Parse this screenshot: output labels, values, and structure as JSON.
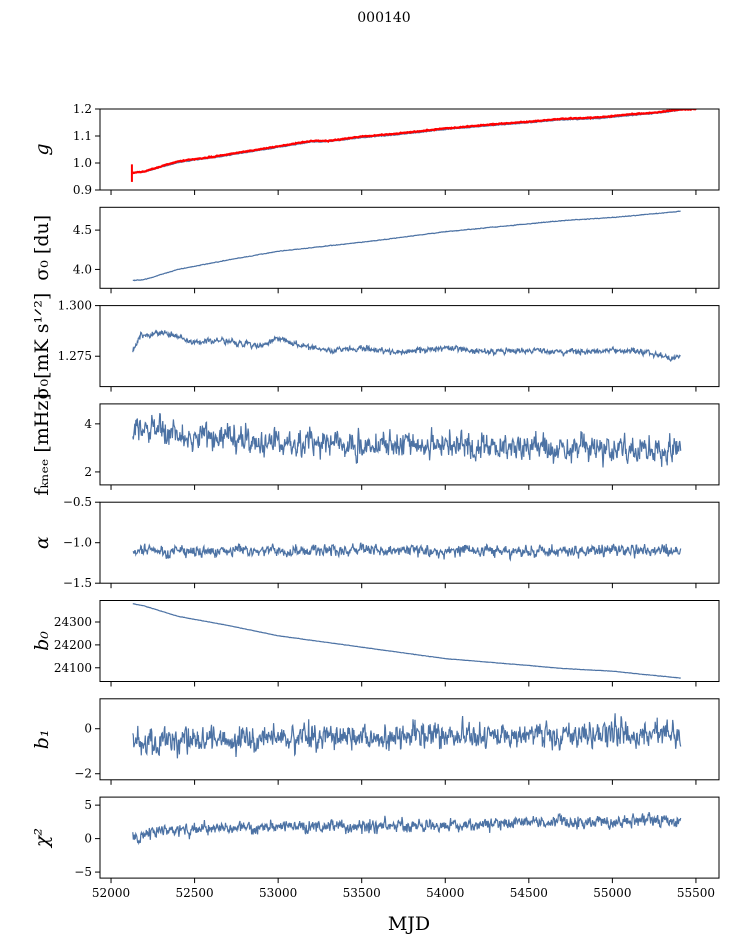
{
  "title": "000140",
  "chart_data": {
    "type": "line",
    "title": "000140",
    "xlabel": "MJD",
    "xlim": [
      51934,
      55638
    ],
    "xticks": [
      52000,
      52500,
      53000,
      53500,
      54000,
      54500,
      55000,
      55500
    ],
    "xtick_labels": [
      "52000",
      "52500",
      "53000",
      "53500",
      "54000",
      "54500",
      "55000",
      "55500"
    ],
    "grid": false,
    "line_color": "#4c72a4",
    "overlay_color": "#ff0000",
    "panels": [
      {
        "ylabel": "g",
        "ylim": [
          0.9,
          1.2
        ],
        "yticks": [
          0.9,
          1.0,
          1.1,
          1.2
        ],
        "ytick_labels": [
          "0.9",
          "1.0",
          "1.1",
          "1.2"
        ],
        "series": [
          {
            "name": "g",
            "color": "#4c72a4",
            "noise": 0.0012,
            "x": [
              52130,
              52200,
              52400,
              52600,
              52800,
              53000,
              53200,
              53300,
              53500,
              53700,
              54000,
              54300,
              54500,
              54700,
              54900,
              55100,
              55250,
              55410
            ],
            "y": [
              0.965,
              0.967,
              1.002,
              1.019,
              1.038,
              1.058,
              1.078,
              1.079,
              1.094,
              1.104,
              1.124,
              1.14,
              1.149,
              1.16,
              1.164,
              1.176,
              1.183,
              1.196
            ]
          },
          {
            "name": "g reference",
            "color": "#ff0000",
            "noise": 0.0012,
            "x": [
              52130,
              52200,
              52400,
              52600,
              52800,
              53000,
              53200,
              53300,
              53500,
              53700,
              54000,
              54300,
              54500,
              54700,
              54900,
              55100,
              55250,
              55400,
              55500
            ],
            "y": [
              0.963,
              0.969,
              1.006,
              1.022,
              1.042,
              1.062,
              1.082,
              1.082,
              1.098,
              1.108,
              1.128,
              1.144,
              1.153,
              1.164,
              1.168,
              1.18,
              1.186,
              1.198,
              1.2
            ],
            "spike": {
              "x": 52125,
              "min": 0.93,
              "max": 0.995
            }
          }
        ]
      },
      {
        "ylabel": "σ₀ [du]",
        "ylim": [
          3.76,
          4.79
        ],
        "yticks": [
          4.0,
          4.5
        ],
        "ytick_labels": [
          "4.0",
          "4.5"
        ],
        "series": [
          {
            "name": "sigma0_du",
            "color": "#4c72a4",
            "noise": 0.003,
            "x": [
              52130,
              52200,
              52400,
              52700,
              53000,
              53300,
              53600,
              54000,
              54400,
              54700,
              55000,
              55410
            ],
            "y": [
              3.86,
              3.87,
              4.0,
              4.12,
              4.23,
              4.3,
              4.37,
              4.48,
              4.56,
              4.62,
              4.66,
              4.74
            ]
          }
        ]
      },
      {
        "ylabel": "σ₀[mK s¹ᐟ²]",
        "ylim": [
          1.26,
          1.3
        ],
        "yticks": [
          1.275,
          1.3
        ],
        "ytick_labels": [
          "1.275",
          "1.300"
        ],
        "series": [
          {
            "name": "sigma0_mK",
            "color": "#4c72a4",
            "noise": 0.0012,
            "x": [
              52130,
              52180,
              52300,
              52500,
              52700,
              52900,
              53000,
              53100,
              53300,
              53500,
              53700,
              54000,
              54300,
              54500,
              54700,
              55000,
              55200,
              55350,
              55410
            ],
            "y": [
              1.277,
              1.285,
              1.287,
              1.282,
              1.283,
              1.28,
              1.284,
              1.281,
              1.278,
              1.279,
              1.277,
              1.279,
              1.277,
              1.278,
              1.277,
              1.278,
              1.277,
              1.274,
              1.275
            ]
          }
        ]
      },
      {
        "ylabel": "fₖₙₑₑ [mHz]",
        "ylim": [
          1.46,
          4.83
        ],
        "yticks": [
          2,
          4
        ],
        "ytick_labels": [
          "2",
          "4"
        ],
        "series": [
          {
            "name": "fknee",
            "color": "#4c72a4",
            "noise": 0.42,
            "x": [
              52130,
              52500,
              53000,
              54000,
              55410
            ],
            "y": [
              3.9,
              3.5,
              3.2,
              3.1,
              2.9
            ]
          }
        ]
      },
      {
        "ylabel": "α",
        "ylim": [
          -1.5,
          -0.5
        ],
        "yticks": [
          -1.5,
          -1.0,
          -0.5
        ],
        "ytick_labels": [
          "−1.5",
          "−1.0",
          "−0.5"
        ],
        "series": [
          {
            "name": "alpha",
            "color": "#4c72a4",
            "noise": 0.055,
            "x": [
              52130,
              55410
            ],
            "y": [
              -1.1,
              -1.1
            ]
          }
        ]
      },
      {
        "ylabel": "b₀",
        "ylim": [
          24040,
          24394
        ],
        "yticks": [
          24100,
          24200,
          24300
        ],
        "ytick_labels": [
          "24100",
          "24200",
          "24300"
        ],
        "series": [
          {
            "name": "b0",
            "color": "#4c72a4",
            "noise": 0.6,
            "x": [
              52130,
              52200,
              52400,
              52700,
              53000,
              53250,
              53500,
              53800,
              54000,
              54500,
              54700,
              55000,
              55200,
              55410
            ],
            "y": [
              24380,
              24370,
              24325,
              24285,
              24240,
              24215,
              24190,
              24160,
              24140,
              24110,
              24097,
              24085,
              24070,
              24055
            ]
          }
        ]
      },
      {
        "ylabel": "b₁",
        "ylim": [
          -2.27,
          1.33
        ],
        "yticks": [
          -2,
          0
        ],
        "ytick_labels": [
          "−2",
          "0"
        ],
        "series": [
          {
            "name": "b1",
            "color": "#4c72a4",
            "noise": 0.45,
            "x": [
              52130,
              52600,
              53300,
              54500,
              55410
            ],
            "y": [
              -0.55,
              -0.5,
              -0.35,
              -0.25,
              -0.25
            ]
          }
        ]
      },
      {
        "ylabel": "χ²",
        "ylim": [
          -5.9,
          6.2
        ],
        "yticks": [
          -5,
          0,
          5
        ],
        "ytick_labels": [
          "−5",
          "0",
          "5"
        ],
        "series": [
          {
            "name": "chi2",
            "color": "#4c72a4",
            "noise": 0.75,
            "x": [
              52130,
              52250,
              53000,
              54000,
              55410
            ],
            "y": [
              0.0,
              1.2,
              1.8,
              2.0,
              2.8
            ]
          }
        ]
      }
    ]
  }
}
